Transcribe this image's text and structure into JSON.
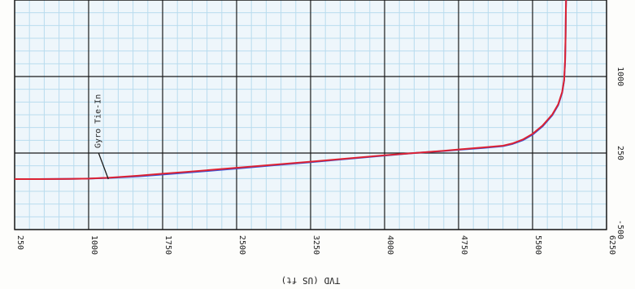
{
  "chart_data": {
    "type": "line",
    "xlabel": "TVD (US ft)",
    "xlim": [
      250,
      6250
    ],
    "ylim": [
      -500,
      1750
    ],
    "x_ticks": [
      {
        "value": 250,
        "label": "250"
      },
      {
        "value": 1000,
        "label": "1000"
      },
      {
        "value": 1750,
        "label": "1750"
      },
      {
        "value": 2500,
        "label": "2500"
      },
      {
        "value": 3250,
        "label": "3250"
      },
      {
        "value": 4000,
        "label": "4000"
      },
      {
        "value": 4750,
        "label": "4750"
      },
      {
        "value": 5500,
        "label": "5500"
      },
      {
        "value": 6250,
        "label": "6250"
      }
    ],
    "y_ticks": [
      {
        "value": -500,
        "label": "-500"
      },
      {
        "value": 250,
        "label": "250"
      },
      {
        "value": 1000,
        "label": "1000"
      }
    ],
    "grid": "major and minor",
    "annotation": {
      "text": "Gyro Tie-In",
      "x": 1200,
      "y": -5
    },
    "series": [
      {
        "color": "#3355dd",
        "x": [
          250,
          500,
          800,
          1000,
          1200,
          1500,
          1750,
          2000,
          2500,
          3000,
          3250,
          3500,
          4000,
          4300,
          4600,
          4750,
          5000,
          5200,
          5300,
          5400,
          5500,
          5600,
          5700,
          5760,
          5800,
          5820,
          5830,
          5835,
          5838,
          5840
        ],
        "y": [
          -5,
          -5,
          -3,
          0,
          6,
          22,
          40,
          58,
          98,
          140,
          160,
          182,
          225,
          250,
          270,
          282,
          300,
          318,
          340,
          375,
          430,
          510,
          620,
          720,
          840,
          960,
          1150,
          1400,
          1650,
          1750
        ]
      },
      {
        "color": "#dd2233",
        "x": [
          250,
          500,
          800,
          1000,
          1200,
          1500,
          1750,
          2000,
          2500,
          3000,
          3250,
          3500,
          4000,
          4300,
          4600,
          4750,
          5000,
          5200,
          5300,
          5400,
          5500,
          5600,
          5700,
          5760,
          5800,
          5820,
          5830,
          5835,
          5838,
          5840
        ],
        "y": [
          -5,
          -5,
          -3,
          0,
          8,
          28,
          48,
          66,
          105,
          145,
          165,
          186,
          228,
          250,
          272,
          285,
          305,
          322,
          345,
          382,
          438,
          518,
          628,
          728,
          848,
          968,
          1160,
          1410,
          1660,
          1750
        ]
      }
    ]
  }
}
